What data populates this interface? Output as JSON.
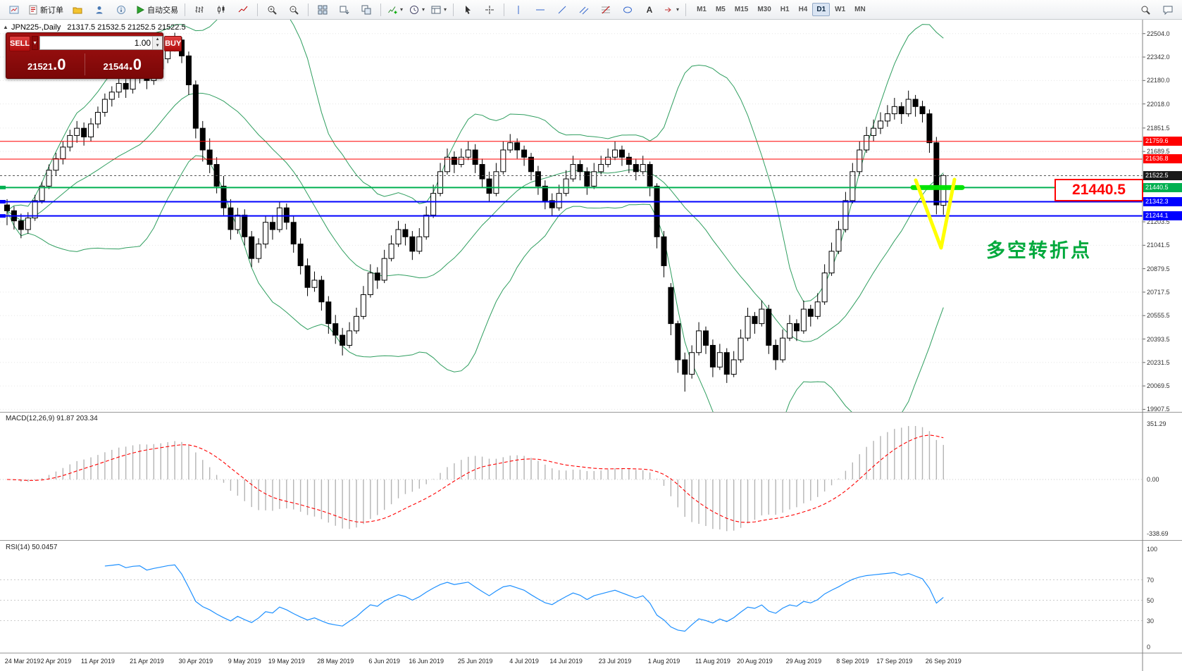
{
  "toolbar": {
    "new_order": "新订单",
    "autotrading": "自动交易",
    "timeframes": [
      "M1",
      "M5",
      "M15",
      "M30",
      "H1",
      "H4",
      "D1",
      "W1",
      "MN"
    ],
    "active_timeframe": "D1"
  },
  "chart": {
    "symbol_label": "JPN225-,Daily",
    "ohlc_label": "21317.5 21532.5 21252.5 21522.5"
  },
  "trade_panel": {
    "sell_label": "SELL",
    "buy_label": "BUY",
    "volume": "1.00",
    "sell_price_main": "21521",
    "sell_price_frac": ".0",
    "buy_price_main": "21544",
    "buy_price_frac": ".0"
  },
  "annotations": {
    "price_callout": "21440.5",
    "turning_point": "多空转折点",
    "v_mark_color": "#ffff00",
    "highlight_color": "#00e400"
  },
  "indicators": {
    "macd": {
      "label": "MACD(12,26,9) 91.87 203.34",
      "axis_max": "351.29",
      "axis_zero": "0.00",
      "axis_min": "-338.69"
    },
    "rsi": {
      "label": "RSI(14) 50.0457",
      "axis": [
        "100",
        "70",
        "50",
        "30",
        "0"
      ]
    }
  },
  "chart_data": {
    "type": "candlestick",
    "symbol": "JPN225-",
    "timeframe": "Daily",
    "ylim": [
      19890,
      22600
    ],
    "y_ticks": [
      22504.0,
      22342.0,
      22180.0,
      22018.0,
      21851.5,
      21689.5,
      21203.5,
      21041.5,
      20879.5,
      20717.5,
      20555.5,
      20393.5,
      20231.5,
      20069.5,
      19907.5
    ],
    "x_labels": [
      "24 Mar 2019",
      "2 Apr 2019",
      "11 Apr 2019",
      "21 Apr 2019",
      "30 Apr 2019",
      "9 May 2019",
      "19 May 2019",
      "28 May 2019",
      "6 Jun 2019",
      "16 Jun 2019",
      "25 Jun 2019",
      "4 Jul 2019",
      "14 Jul 2019",
      "23 Jul 2019",
      "1 Aug 2019",
      "11 Aug 2019",
      "20 Aug 2019",
      "29 Aug 2019",
      "8 Sep 2019",
      "17 Sep 2019",
      "26 Sep 2019"
    ],
    "x_label_indices": [
      0,
      7,
      13,
      20,
      27,
      34,
      40,
      47,
      54,
      60,
      67,
      74,
      80,
      87,
      94,
      101,
      107,
      114,
      121,
      127,
      134
    ],
    "hlines": [
      {
        "price": 21759.6,
        "label": "21759.6",
        "color": "#ff0000",
        "width": 1
      },
      {
        "price": 21636.8,
        "label": "21636.8",
        "color": "#ff0000",
        "width": 1
      },
      {
        "price": 21440.5,
        "label": "21440.5",
        "color": "#00b050",
        "width": 2
      },
      {
        "price": 21342.3,
        "label": "21342.3",
        "color": "#0000ff",
        "width": 2
      },
      {
        "price": 21244.1,
        "label": "21244.1",
        "color": "#0000ff",
        "width": 2
      }
    ],
    "current_price": {
      "value": 21522.5,
      "label": "21522.5",
      "color": "#1a1a1a"
    },
    "bollinger": {
      "period": 20,
      "deviation": 2,
      "color": "#2f9e5f"
    },
    "candles": [
      [
        21320,
        21360,
        21180,
        21280
      ],
      [
        21280,
        21310,
        21150,
        21210
      ],
      [
        21210,
        21260,
        21090,
        21150
      ],
      [
        21150,
        21270,
        21120,
        21230
      ],
      [
        21230,
        21390,
        21210,
        21350
      ],
      [
        21350,
        21480,
        21330,
        21450
      ],
      [
        21450,
        21600,
        21430,
        21560
      ],
      [
        21560,
        21680,
        21520,
        21640
      ],
      [
        21640,
        21760,
        21600,
        21720
      ],
      [
        21720,
        21840,
        21690,
        21800
      ],
      [
        21800,
        21900,
        21750,
        21850
      ],
      [
        21850,
        21890,
        21730,
        21790
      ],
      [
        21790,
        21920,
        21760,
        21880
      ],
      [
        21880,
        22000,
        21850,
        21960
      ],
      [
        21960,
        22090,
        21930,
        22050
      ],
      [
        22050,
        22140,
        22000,
        22100
      ],
      [
        22100,
        22200,
        22060,
        22160
      ],
      [
        22160,
        22190,
        22060,
        22120
      ],
      [
        22120,
        22240,
        22090,
        22200
      ],
      [
        22200,
        22280,
        22160,
        22230
      ],
      [
        22230,
        22260,
        22120,
        22180
      ],
      [
        22180,
        22300,
        22150,
        22260
      ],
      [
        22260,
        22370,
        22230,
        22330
      ],
      [
        22330,
        22450,
        22300,
        22410
      ],
      [
        22410,
        22510,
        22380,
        22460
      ],
      [
        22460,
        22480,
        22300,
        22350
      ],
      [
        22350,
        22380,
        22080,
        22150
      ],
      [
        22150,
        22180,
        21780,
        21850
      ],
      [
        21850,
        21900,
        21620,
        21700
      ],
      [
        21700,
        21780,
        21540,
        21600
      ],
      [
        21600,
        21650,
        21400,
        21450
      ],
      [
        21450,
        21520,
        21250,
        21300
      ],
      [
        21300,
        21360,
        21080,
        21150
      ],
      [
        21150,
        21300,
        21120,
        21250
      ],
      [
        21250,
        21290,
        21040,
        21100
      ],
      [
        21100,
        21140,
        20890,
        20950
      ],
      [
        20950,
        21090,
        20920,
        21050
      ],
      [
        21050,
        21240,
        21020,
        21200
      ],
      [
        21200,
        21250,
        21080,
        21150
      ],
      [
        21150,
        21340,
        21130,
        21300
      ],
      [
        21300,
        21330,
        21150,
        21200
      ],
      [
        21200,
        21240,
        20990,
        21050
      ],
      [
        21050,
        21090,
        20840,
        20900
      ],
      [
        20900,
        20950,
        20690,
        20750
      ],
      [
        20750,
        20860,
        20720,
        20800
      ],
      [
        20800,
        20830,
        20590,
        20650
      ],
      [
        20650,
        20690,
        20430,
        20500
      ],
      [
        20500,
        20560,
        20360,
        20420
      ],
      [
        20420,
        20470,
        20280,
        20350
      ],
      [
        20350,
        20510,
        20330,
        20450
      ],
      [
        20450,
        20610,
        20430,
        20550
      ],
      [
        20550,
        20760,
        20530,
        20700
      ],
      [
        20700,
        20910,
        20680,
        20850
      ],
      [
        20850,
        20890,
        20740,
        20800
      ],
      [
        20800,
        21010,
        20780,
        20950
      ],
      [
        20950,
        21110,
        20930,
        21050
      ],
      [
        21050,
        21210,
        21030,
        21150
      ],
      [
        21150,
        21190,
        21040,
        21100
      ],
      [
        21100,
        21140,
        20940,
        21000
      ],
      [
        21000,
        21160,
        20980,
        21100
      ],
      [
        21100,
        21310,
        21080,
        21250
      ],
      [
        21250,
        21460,
        21230,
        21400
      ],
      [
        21400,
        21610,
        21380,
        21550
      ],
      [
        21550,
        21710,
        21530,
        21650
      ],
      [
        21650,
        21690,
        21540,
        21600
      ],
      [
        21600,
        21710,
        21580,
        21650
      ],
      [
        21650,
        21760,
        21630,
        21700
      ],
      [
        21700,
        21740,
        21540,
        21600
      ],
      [
        21600,
        21640,
        21440,
        21500
      ],
      [
        21500,
        21550,
        21340,
        21400
      ],
      [
        21400,
        21610,
        21380,
        21550
      ],
      [
        21550,
        21760,
        21530,
        21700
      ],
      [
        21700,
        21810,
        21680,
        21750
      ],
      [
        21750,
        21780,
        21640,
        21700
      ],
      [
        21700,
        21730,
        21590,
        21650
      ],
      [
        21650,
        21680,
        21490,
        21550
      ],
      [
        21550,
        21590,
        21390,
        21450
      ],
      [
        21450,
        21490,
        21290,
        21350
      ],
      [
        21350,
        21400,
        21240,
        21300
      ],
      [
        21300,
        21460,
        21280,
        21400
      ],
      [
        21400,
        21560,
        21380,
        21500
      ],
      [
        21500,
        21660,
        21480,
        21600
      ],
      [
        21600,
        21630,
        21490,
        21550
      ],
      [
        21550,
        21580,
        21390,
        21450
      ],
      [
        21450,
        21610,
        21430,
        21550
      ],
      [
        21550,
        21660,
        21530,
        21600
      ],
      [
        21600,
        21710,
        21580,
        21650
      ],
      [
        21650,
        21760,
        21630,
        21700
      ],
      [
        21700,
        21730,
        21590,
        21650
      ],
      [
        21650,
        21680,
        21540,
        21600
      ],
      [
        21600,
        21640,
        21490,
        21550
      ],
      [
        21550,
        21660,
        21530,
        21600
      ],
      [
        21600,
        21620,
        21380,
        21450
      ],
      [
        21450,
        21470,
        21020,
        21100
      ],
      [
        21100,
        21140,
        20820,
        20900
      ],
      [
        20750,
        20780,
        20420,
        20500
      ],
      [
        20500,
        20520,
        20160,
        20250
      ],
      [
        20250,
        20300,
        20030,
        20150
      ],
      [
        20150,
        20350,
        20120,
        20300
      ],
      [
        20300,
        20510,
        20280,
        20450
      ],
      [
        20450,
        20480,
        20290,
        20350
      ],
      [
        20350,
        20390,
        20130,
        20200
      ],
      [
        20200,
        20360,
        20180,
        20300
      ],
      [
        20300,
        20330,
        20090,
        20150
      ],
      [
        20150,
        20310,
        20130,
        20250
      ],
      [
        20250,
        20460,
        20230,
        20400
      ],
      [
        20400,
        20610,
        20380,
        20550
      ],
      [
        20550,
        20580,
        20430,
        20500
      ],
      [
        20500,
        20660,
        20480,
        20600
      ],
      [
        20600,
        20630,
        20290,
        20350
      ],
      [
        20350,
        20390,
        20180,
        20250
      ],
      [
        20250,
        20460,
        20230,
        20400
      ],
      [
        20400,
        20560,
        20380,
        20500
      ],
      [
        20500,
        20530,
        20380,
        20450
      ],
      [
        20450,
        20660,
        20430,
        20600
      ],
      [
        20600,
        20630,
        20480,
        20550
      ],
      [
        20550,
        20710,
        20530,
        20650
      ],
      [
        20650,
        20910,
        20630,
        20850
      ],
      [
        20850,
        21060,
        20830,
        21000
      ],
      [
        21000,
        21210,
        20980,
        21150
      ],
      [
        21150,
        21410,
        21130,
        21350
      ],
      [
        21350,
        21610,
        21330,
        21550
      ],
      [
        21550,
        21760,
        21530,
        21700
      ],
      [
        21700,
        21860,
        21680,
        21800
      ],
      [
        21800,
        21910,
        21760,
        21850
      ],
      [
        21850,
        21960,
        21810,
        21900
      ],
      [
        21900,
        22010,
        21860,
        21950
      ],
      [
        21950,
        22060,
        21910,
        22000
      ],
      [
        22000,
        22030,
        21880,
        21950
      ],
      [
        21950,
        22110,
        21930,
        22050
      ],
      [
        22050,
        22080,
        21930,
        22000
      ],
      [
        22000,
        22040,
        21890,
        21950
      ],
      [
        21950,
        21980,
        21680,
        21750
      ],
      [
        21750,
        21790,
        21255,
        21320
      ],
      [
        21317.5,
        21532.5,
        21252.5,
        21522.5
      ]
    ]
  }
}
